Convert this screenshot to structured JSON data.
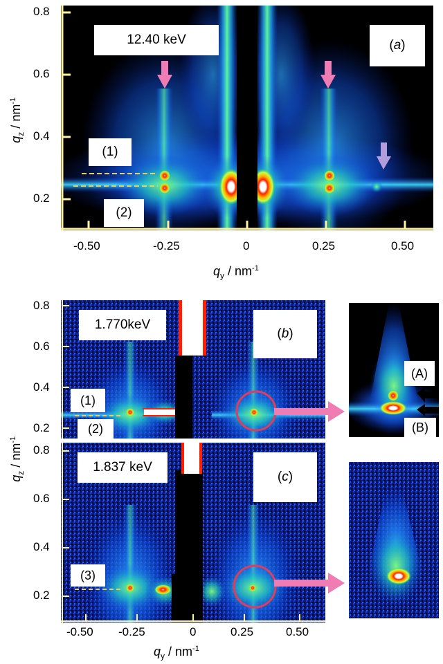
{
  "chart_data": [
    {
      "type": "heatmap",
      "panel": "(a)",
      "energy": "12.40 keV",
      "xlabel": "q_y / nm-1",
      "ylabel": "q_z / nm-1",
      "xticks": [
        "-0.50",
        "-0.25",
        "0",
        "0.25",
        "0.50"
      ],
      "yticks": [
        "0.2",
        "0.4",
        "0.6",
        "0.8"
      ],
      "xlim": [
        -0.6,
        0.6
      ],
      "ylim": [
        0.08,
        0.8
      ],
      "annotations": [
        "(1)",
        "(2)"
      ],
      "arrows": [
        {
          "qy": -0.27,
          "qz": 0.42,
          "color": "#f07cb4"
        },
        {
          "qy": 0.27,
          "qz": 0.42,
          "color": "#f07cb4"
        },
        {
          "qy": 0.45,
          "qz": 0.24,
          "color": "#b39ddb"
        }
      ],
      "peaks": [
        {
          "qy": -0.27,
          "qz": 0.24
        },
        {
          "qy": -0.27,
          "qz": 0.21
        },
        {
          "qy": 0.27,
          "qz": 0.24
        },
        {
          "qy": 0.27,
          "qz": 0.21
        },
        {
          "qy": 0.45,
          "qz": 0.21
        }
      ]
    },
    {
      "type": "heatmap",
      "panel": "(b)",
      "energy": "1.770keV",
      "ylabel": "q_z / nm-1",
      "yticks": [
        "0.2",
        "0.4",
        "0.6",
        "0.8"
      ],
      "ylim": [
        0.13,
        0.82
      ],
      "annotations": [
        "(1)",
        "(2)"
      ],
      "inset_labels": [
        "(A)",
        "(B)"
      ]
    },
    {
      "type": "heatmap",
      "panel": "(c)",
      "energy": "1.837 keV",
      "xlabel": "q_y / nm-1",
      "xticks": [
        "-0.50",
        "-0.25",
        "0",
        "0.25",
        "0.50"
      ],
      "yticks": [
        "0.2",
        "0.4",
        "0.6",
        "0.8"
      ],
      "xlim": [
        -0.6,
        0.6
      ],
      "ylim": [
        0.13,
        0.82
      ],
      "annotations": [
        "(3)"
      ]
    }
  ],
  "text": {
    "a": {
      "energy": "12.40 keV",
      "label": "a",
      "ann1": "(1)",
      "ann2": "(2)"
    },
    "b": {
      "energy": "1.770keV",
      "label": "b",
      "ann1": "(1)",
      "ann2": "(2)",
      "insetA": "(A)",
      "insetB": "(B)"
    },
    "c": {
      "energy": "1.837 keV",
      "label": "c",
      "ann3": "(3)"
    },
    "ticks_a_y": [
      "0.8",
      "0.6",
      "0.4",
      "0.2"
    ],
    "ticks_a_x": [
      "-0.50",
      "-0.25",
      "0",
      "0.25",
      "0.50"
    ],
    "ticks_b_y": [
      "0.8",
      "0.6",
      "0.4",
      "0.2"
    ],
    "ticks_c_y": [
      "0.8",
      "0.6",
      "0.4",
      "0.2"
    ],
    "ticks_c_x": [
      "-0.50",
      "-0.25",
      "0",
      "0.25",
      "0.50"
    ],
    "qz": "q",
    "qz_sub": "z",
    "qy": "q",
    "qy_sub": "y",
    "unit": "/ nm",
    "unit_sup": "-1"
  }
}
